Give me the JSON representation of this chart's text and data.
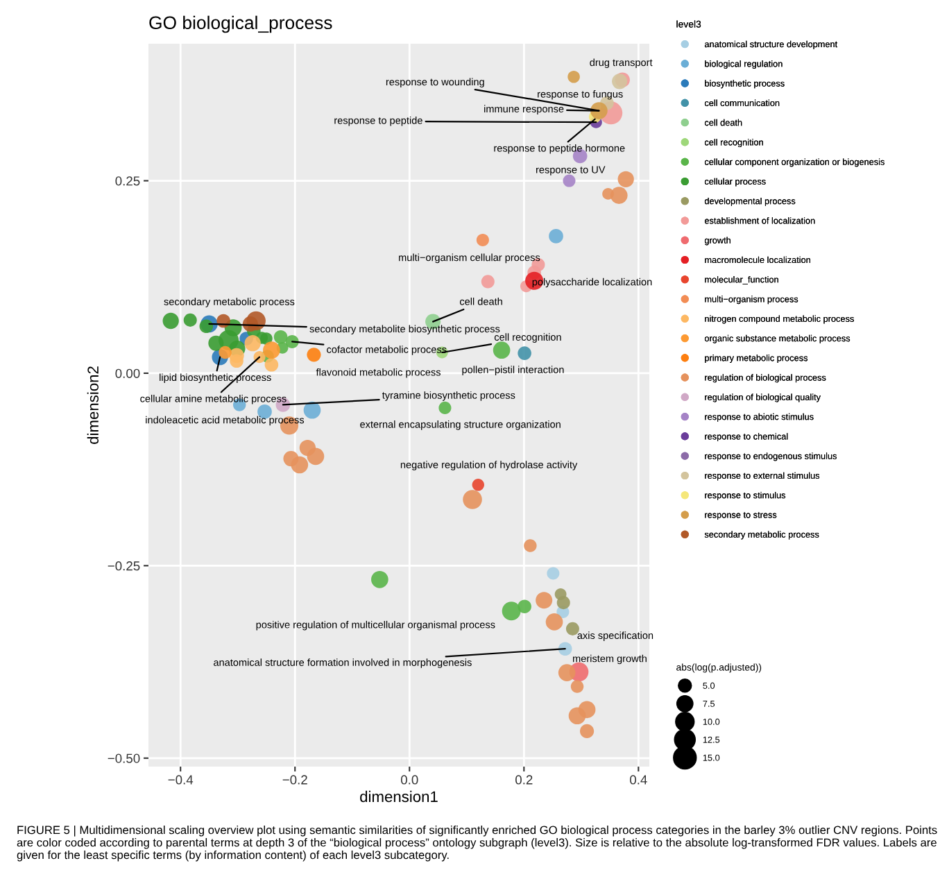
{
  "chart_data": {
    "type": "bubble",
    "title": "GO biological_process",
    "xlabel": "dimension1",
    "ylabel": "dimension2",
    "legend_title": "level3",
    "xlim": [
      -0.456,
      0.419
    ],
    "ylim": [
      -0.511,
      0.428
    ],
    "xticks": [
      {
        "value": -0.4,
        "label": "−0.4"
      },
      {
        "value": -0.2,
        "label": "−0.2"
      },
      {
        "value": 0.0,
        "label": "0.0"
      },
      {
        "value": 0.2,
        "label": "0.2"
      },
      {
        "value": 0.4,
        "label": "0.4"
      }
    ],
    "yticks": [
      {
        "value": -0.5,
        "label": "−0.50"
      },
      {
        "value": -0.25,
        "label": "−0.25"
      },
      {
        "value": 0.0,
        "label": "0.00"
      },
      {
        "value": 0.25,
        "label": "0.25"
      }
    ],
    "grid": true,
    "legend": "right",
    "marker": "circle",
    "size_legend": [
      {
        "value": 5,
        "label": "5.0"
      },
      {
        "value": 7.5,
        "label": "7.5"
      },
      {
        "value": 10,
        "label": "10.0"
      },
      {
        "value": 12.5,
        "label": "12.5"
      },
      {
        "value": 15,
        "label": "15.0"
      }
    ],
    "series": [
      {
        "name": "anatomical structure development",
        "color": "#a6cee3",
        "x": [
          0.251,
          0.268,
          0.272
        ],
        "values": [
          -0.26,
          -0.31,
          -0.358
        ],
        "sizes": [
          4.5,
          4.5,
          5.3
        ]
      },
      {
        "name": "biological regulation",
        "color": "#6baed6",
        "x": [
          0.256,
          -0.297,
          -0.253,
          -0.17
        ],
        "values": [
          0.178,
          -0.041,
          -0.05,
          -0.048
        ],
        "sizes": [
          5.9,
          4.7,
          5.9,
          8.4
        ]
      },
      {
        "name": "biosynthetic process",
        "color": "#2b7bba",
        "x": [
          -0.35,
          -0.331,
          -0.285
        ],
        "values": [
          0.064,
          0.021,
          0.045
        ],
        "sizes": [
          8.4,
          7.5,
          5.3
        ]
      },
      {
        "name": "cell communication",
        "color": "#4292a8",
        "x": [
          0.201
        ],
        "values": [
          0.026
        ],
        "sizes": [
          5.3
        ]
      },
      {
        "name": "cell death",
        "color": "#8fcf8f",
        "x": [
          0.041
        ],
        "values": [
          0.067
        ],
        "sizes": [
          6.7
        ]
      },
      {
        "name": "cell recognition",
        "color": "#9ed77a",
        "x": [
          0.057
        ],
        "values": [
          0.027
        ],
        "sizes": [
          3.9
        ]
      },
      {
        "name": "cellular component organization or biogenesis",
        "color": "#5ab54a",
        "x": [
          0.161,
          0.062,
          -0.052,
          0.178,
          0.201,
          -0.225,
          -0.222,
          -0.205,
          -0.248
        ],
        "values": [
          0.03,
          -0.045,
          -0.268,
          -0.309,
          -0.303,
          0.047,
          0.033,
          0.041,
          0.022
        ],
        "sizes": [
          8.4,
          4.5,
          8.4,
          10.0,
          5.3,
          5.3,
          3.9,
          5.0,
          4.7
        ]
      },
      {
        "name": "cellular process",
        "color": "#3a9c32",
        "x": [
          -0.417,
          -0.383,
          -0.355,
          -0.308,
          -0.316,
          -0.338,
          -0.301,
          -0.272,
          -0.258,
          -0.25
        ],
        "values": [
          0.068,
          0.069,
          0.061,
          0.059,
          0.043,
          0.039,
          0.032,
          0.055,
          0.046,
          0.045
        ],
        "sizes": [
          7.5,
          5.0,
          5.3,
          8.4,
          11.7,
          6.7,
          7.5,
          5.3,
          4.2,
          4.2
        ]
      },
      {
        "name": "developmental process",
        "color": "#9a9a62",
        "x": [
          0.264,
          0.269,
          0.285
        ],
        "values": [
          -0.287,
          -0.298,
          -0.332
        ],
        "sizes": [
          3.9,
          5.0,
          5.0
        ]
      },
      {
        "name": "establishment of localization",
        "color": "#f29a98",
        "x": [
          0.372,
          0.352,
          0.225,
          0.218,
          0.137,
          0.204
        ],
        "values": [
          0.381,
          0.338,
          0.141,
          0.131,
          0.119,
          0.113
        ],
        "sizes": [
          6.3,
          15.0,
          5.0,
          5.3,
          5.0,
          4.1
        ]
      },
      {
        "name": "growth",
        "color": "#ef6b6f",
        "x": [
          0.296
        ],
        "values": [
          -0.388
        ],
        "sizes": [
          10.5
        ]
      },
      {
        "name": "macromolecule localization",
        "color": "#e41f24",
        "x": [
          0.218
        ],
        "values": [
          0.12
        ],
        "sizes": [
          9.4
        ]
      },
      {
        "name": "molecular_function",
        "color": "#e8452e",
        "x": [
          0.12
        ],
        "values": [
          -0.145
        ],
        "sizes": [
          4.2
        ]
      },
      {
        "name": "multi−organism process",
        "color": "#f28d55",
        "x": [
          0.128
        ],
        "values": [
          0.173
        ],
        "sizes": [
          4.5
        ]
      },
      {
        "name": "nitrogen compound metabolic process",
        "color": "#fdb863",
        "x": [
          -0.302,
          -0.302,
          -0.274,
          -0.262,
          -0.241
        ],
        "values": [
          0.023,
          0.016,
          0.039,
          0.021,
          0.011
        ],
        "sizes": [
          6.3,
          5.3,
          7.5,
          4.0,
          5.3
        ]
      },
      {
        "name": "organic substance metabolic process",
        "color": "#fd9a33",
        "x": [
          -0.322,
          -0.241
        ],
        "values": [
          0.027,
          0.03
        ],
        "sizes": [
          4.7,
          8.4
        ]
      },
      {
        "name": "primary metabolic process",
        "color": "#fd7f10",
        "x": [
          -0.167
        ],
        "values": [
          0.024
        ],
        "sizes": [
          5.6
        ]
      },
      {
        "name": "regulation of biological process",
        "color": "#e5925d",
        "x": [
          0.378,
          0.347,
          0.366,
          -0.21,
          -0.178,
          -0.164,
          -0.207,
          -0.192,
          0.11,
          0.211,
          0.235,
          0.253,
          0.275,
          0.293,
          0.31,
          0.293,
          0.31
        ],
        "values": [
          0.252,
          0.233,
          0.231,
          -0.068,
          -0.097,
          -0.108,
          -0.111,
          -0.119,
          -0.164,
          -0.224,
          -0.295,
          -0.323,
          -0.389,
          -0.407,
          -0.437,
          -0.445,
          -0.465
        ],
        "sizes": [
          7.5,
          3.9,
          8.4,
          9.4,
          7.5,
          8.4,
          6.7,
          8.4,
          10.5,
          4.7,
          8.0,
          8.4,
          8.4,
          4.7,
          8.4,
          8.4,
          5.6
        ]
      },
      {
        "name": "regulation of biological quality",
        "color": "#d0a8c6",
        "x": [
          -0.221
        ],
        "values": [
          -0.041
        ],
        "sizes": [
          5.9
        ]
      },
      {
        "name": "response to abiotic stimulus",
        "color": "#a583c6",
        "x": [
          0.298,
          0.279
        ],
        "values": [
          0.282,
          0.25
        ],
        "sizes": [
          5.9,
          4.5
        ]
      },
      {
        "name": "response to chemical",
        "color": "#6a3d9a",
        "x": [
          0.326
        ],
        "values": [
          0.326
        ],
        "sizes": [
          4.0
        ]
      },
      {
        "name": "response to endogenous stimulus",
        "color": "#8c6ba8"
      },
      {
        "name": "response to external stimulus",
        "color": "#d3c49d",
        "x": [
          0.367,
          0.345
        ],
        "values": [
          0.379,
          0.351
        ],
        "sizes": [
          6.7,
          5.3
        ]
      },
      {
        "name": "response to stimulus",
        "color": "#f5e77a",
        "x": [
          0.324
        ],
        "values": [
          0.333
        ],
        "sizes": [
          4.2
        ]
      },
      {
        "name": "response to stress",
        "color": "#d49d4b",
        "x": [
          0.287,
          0.331
        ],
        "values": [
          0.385,
          0.341
        ],
        "sizes": [
          4.25,
          8.4
        ]
      },
      {
        "name": "secondary metabolic process",
        "color": "#b15928",
        "x": [
          -0.325,
          -0.268,
          -0.278
        ],
        "values": [
          0.068,
          0.068,
          0.064
        ],
        "sizes": [
          5.3,
          10.5,
          6.7
        ]
      }
    ],
    "annotations": [
      {
        "text": "drug transport",
        "x": 0.287,
        "y": 0.385
      },
      {
        "text": "response to wounding",
        "x": 0.331,
        "y": 0.341
      },
      {
        "text": "response to fungus",
        "x": 0.367,
        "y": 0.379
      },
      {
        "text": "immune response",
        "x": 0.331,
        "y": 0.341
      },
      {
        "text": "response to peptide",
        "x": 0.326,
        "y": 0.326
      },
      {
        "text": "response to peptide hormone",
        "x": 0.324,
        "y": 0.33
      },
      {
        "text": "response to UV",
        "x": 0.298,
        "y": 0.282
      },
      {
        "text": "multi−organism cellular process",
        "x": 0.128,
        "y": 0.173
      },
      {
        "text": "polysaccharide localization",
        "x": 0.218,
        "y": 0.12
      },
      {
        "text": "secondary metabolic process",
        "x": -0.325,
        "y": 0.068
      },
      {
        "text": "cell death",
        "x": 0.041,
        "y": 0.067
      },
      {
        "text": "secondary metabolite biosynthetic process",
        "x": -0.35,
        "y": 0.064
      },
      {
        "text": "cofactor metabolic process",
        "x": -0.205,
        "y": 0.041
      },
      {
        "text": "cell recognition",
        "x": 0.057,
        "y": 0.027
      },
      {
        "text": "flavonoid metabolic process",
        "x": -0.167,
        "y": 0.024
      },
      {
        "text": "pollen−pistil interaction",
        "x": 0.201,
        "y": 0.026
      },
      {
        "text": "lipid biosynthetic process",
        "x": -0.331,
        "y": 0.021
      },
      {
        "text": "cellular amine metabolic process",
        "x": -0.262,
        "y": 0.021
      },
      {
        "text": "tyramine biosynthetic process",
        "x": -0.221,
        "y": -0.041
      },
      {
        "text": "indoleacetic acid metabolic process",
        "x": -0.21,
        "y": -0.068
      },
      {
        "text": "external encapsulating structure organization",
        "x": 0.062,
        "y": -0.045
      },
      {
        "text": "negative regulation of hydrolase activity",
        "x": 0.12,
        "y": -0.145
      },
      {
        "text": "positive regulation of multicellular organismal process",
        "x": 0.178,
        "y": -0.309
      },
      {
        "text": "axis specification",
        "x": 0.272,
        "y": -0.358
      },
      {
        "text": "anatomical structure formation involved in morphogenesis",
        "x": 0.272,
        "y": -0.358
      },
      {
        "text": "meristem growth",
        "x": 0.296,
        "y": -0.388
      },
      "abs(log(p.adjusted))",
      "FIGURE 5 | Multidimensional scaling overview plot using semantic similarities of significantly enriched GO biological process categories in the barley 3% outlier CNV regions. Points are color coded according to parental terms at depth 3 of the “biological process” ontology subgraph (level3). Size is relative to the absolute log-transformed FDR values. Labels are given for the least specific terms (by information content) of each level3 subcategory."
    ]
  }
}
